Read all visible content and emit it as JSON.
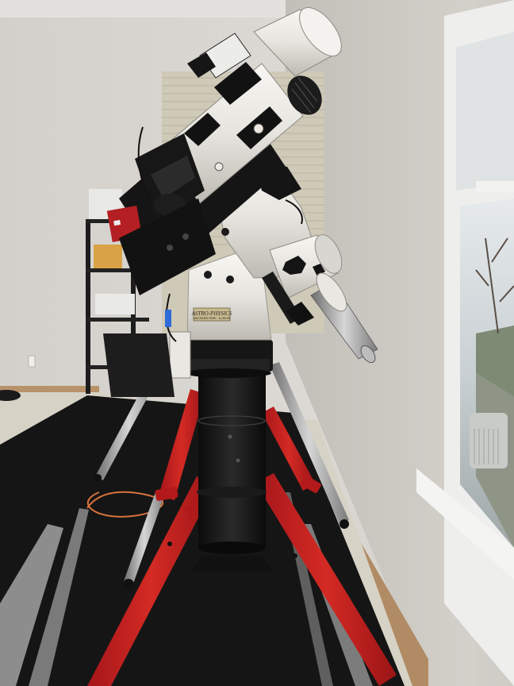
{
  "scene": {
    "description_title": "Telescope on equatorial mount with red tripod beside a window",
    "mount_label": "ASTRO-PHYSICS",
    "mount_sublabel": "MACHINES PARK · ILLINOIS",
    "colors": {
      "wall": "#d9d6d1",
      "wall_right": "#c9c6c0",
      "floor_carpet": "#d6d2c6",
      "rug": "#151515",
      "rug_stripe": "#8a8a8a",
      "tripod_red": "#c8211f",
      "tube_white": "#ecebe6",
      "mount_black": "#141414",
      "window_frame": "#f2f2f0",
      "window_glass": "#c4ccd0"
    }
  }
}
